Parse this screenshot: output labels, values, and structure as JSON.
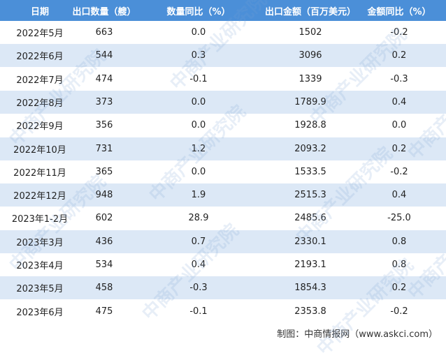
{
  "table": {
    "header": [
      "日期",
      "出口数量（艘）",
      "数量同比（%）",
      "出口金额（百万美元）",
      "金额同比（%）"
    ],
    "rows": [
      [
        "2022年5月",
        "663",
        "0.0",
        "1502",
        "-0.2"
      ],
      [
        "2022年6月",
        "544",
        "0.3",
        "3096",
        "0.2"
      ],
      [
        "2022年7月",
        "474",
        "-0.1",
        "1339",
        "-0.3"
      ],
      [
        "2022年8月",
        "373",
        "0.0",
        "1789.9",
        "0.4"
      ],
      [
        "2022年9月",
        "356",
        "0.0",
        "1928.8",
        "0.0"
      ],
      [
        "2022年10月",
        "731",
        "1.2",
        "2093.2",
        "0.2"
      ],
      [
        "2022年11月",
        "365",
        "0.0",
        "1533.5",
        "-0.2"
      ],
      [
        "2022年12月",
        "948",
        "1.9",
        "2515.3",
        "0.4"
      ],
      [
        "2023年1-2月",
        "602",
        "28.9",
        "2485.6",
        "-25.0"
      ],
      [
        "2023年3月",
        "436",
        "0.7",
        "2330.1",
        "0.8"
      ],
      [
        "2023年4月",
        "534",
        "0.4",
        "2193.1",
        "0.8"
      ],
      [
        "2023年5月",
        "458",
        "-0.3",
        "1854.3",
        "0.2"
      ],
      [
        "2023年6月",
        "475",
        "-0.1",
        "2353.8",
        "-0.2"
      ]
    ]
  },
  "footer": "制图：中商情报网（www.askci.com）",
  "watermark": "中商产业研究院"
}
